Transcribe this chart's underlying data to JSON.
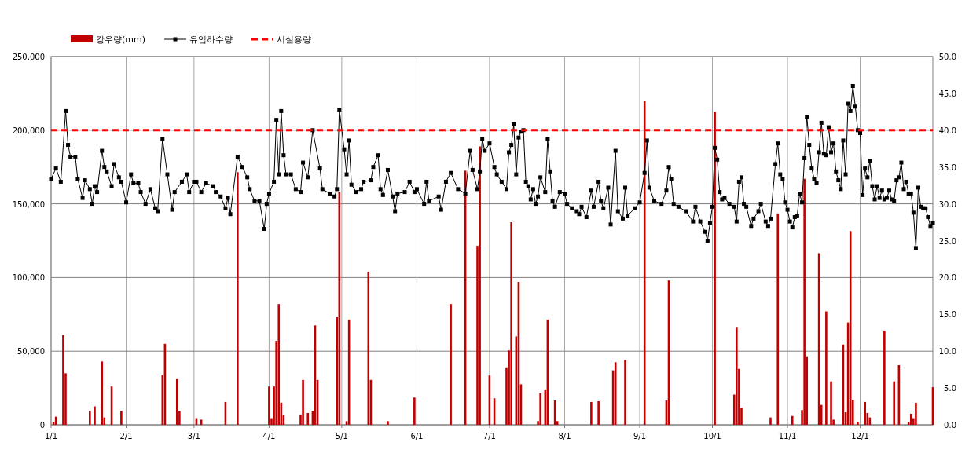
{
  "chart_data": {
    "type": "line",
    "xlim": [
      "--01-01",
      "--12-31"
    ],
    "xticks": [
      {
        "value": "--01-01",
        "label": "1/1"
      },
      {
        "value": "--02-01",
        "label": "2/1"
      },
      {
        "value": "--03-01",
        "label": "3/1"
      },
      {
        "value": "--04-01",
        "label": "4/1"
      },
      {
        "value": "--05-01",
        "label": "5/1"
      },
      {
        "value": "--06-01",
        "label": "6/1"
      },
      {
        "value": "--07-01",
        "label": "7/1"
      },
      {
        "value": "--08-01",
        "label": "8/1"
      },
      {
        "value": "--09-01",
        "label": "9/1"
      },
      {
        "value": "--10-01",
        "label": "10/1"
      },
      {
        "value": "--11-01",
        "label": "11/1"
      },
      {
        "value": "--12-01",
        "label": "12/1"
      }
    ],
    "ylim": [
      0,
      250000
    ],
    "yticks": [
      {
        "value": 0,
        "label": "0"
      },
      {
        "value": 50000,
        "label": "50,000"
      },
      {
        "value": 100000,
        "label": "100,000"
      },
      {
        "value": 150000,
        "label": "150,000"
      },
      {
        "value": 200000,
        "label": "200,000"
      },
      {
        "value": 250000,
        "label": "250,000"
      }
    ],
    "y2lim": [
      0,
      50
    ],
    "y2ticks": [
      {
        "value": 0,
        "label": "0.0"
      },
      {
        "value": 5,
        "label": "5.0"
      },
      {
        "value": 10,
        "label": "10.0"
      },
      {
        "value": 15,
        "label": "15.0"
      },
      {
        "value": 20,
        "label": "20.0"
      },
      {
        "value": 25,
        "label": "25.0"
      },
      {
        "value": 30,
        "label": "30.0"
      },
      {
        "value": 35,
        "label": "35.0"
      },
      {
        "value": 40,
        "label": "40.0"
      },
      {
        "value": 45,
        "label": "45.0"
      },
      {
        "value": 50,
        "label": "50.0"
      }
    ],
    "grid": true,
    "legend": "top left",
    "series": [
      {
        "name": "강우량(mm)",
        "type": "bar",
        "axis": "y2",
        "color": "#c00000",
        "x": [
          "--01-02",
          "--01-03",
          "--01-06",
          "--01-07",
          "--01-17",
          "--01-19",
          "--01-22",
          "--01-23",
          "--01-26",
          "--01-30",
          "--02-16",
          "--02-17",
          "--02-22",
          "--02-23",
          "--03-02",
          "--03-04",
          "--03-14",
          "--03-19",
          "--04-01",
          "--04-02",
          "--04-03",
          "--04-04",
          "--04-05",
          "--04-06",
          "--04-07",
          "--04-14",
          "--04-15",
          "--04-17",
          "--04-19",
          "--04-20",
          "--04-21",
          "--04-29",
          "--04-30",
          "--05-03",
          "--05-04",
          "--05-12",
          "--05-13",
          "--05-20",
          "--05-31",
          "--06-15",
          "--06-21",
          "--06-26",
          "--06-27",
          "--07-01",
          "--07-03",
          "--07-08",
          "--07-09",
          "--07-10",
          "--07-12",
          "--07-13",
          "--07-14",
          "--07-21",
          "--07-22",
          "--07-24",
          "--07-25",
          "--07-28",
          "--07-29",
          "--08-12",
          "--08-15",
          "--08-21",
          "--08-22",
          "--08-26",
          "--09-03",
          "--09-12",
          "--09-13",
          "--10-02",
          "--10-10",
          "--10-11",
          "--10-12",
          "--10-13",
          "--10-25",
          "--10-28",
          "--11-03",
          "--11-07",
          "--11-08",
          "--11-09",
          "--11-14",
          "--11-15",
          "--11-17",
          "--11-19",
          "--11-20",
          "--11-24",
          "--11-25",
          "--11-26",
          "--11-27",
          "--11-28",
          "--11-30",
          "--12-03",
          "--12-04",
          "--12-05",
          "--12-11",
          "--12-15",
          "--12-17",
          "--12-21",
          "--12-22",
          "--12-23",
          "--12-24",
          "--12-31"
        ],
        "values": [
          0.4,
          1.1,
          12.2,
          7.0,
          1.9,
          2.5,
          8.6,
          1.0,
          5.2,
          1.9,
          6.8,
          11.0,
          6.2,
          1.9,
          0.9,
          0.7,
          3.1,
          34.3,
          5.2,
          0.9,
          5.2,
          11.4,
          16.4,
          3.0,
          1.3,
          1.4,
          6.1,
          1.6,
          1.9,
          13.5,
          6.1,
          14.6,
          31.6,
          0.5,
          14.3,
          20.8,
          6.1,
          0.5,
          3.7,
          16.4,
          34.5,
          24.3,
          37.8,
          6.7,
          3.6,
          7.7,
          10.1,
          27.5,
          12.0,
          19.4,
          5.5,
          0.5,
          4.3,
          4.7,
          14.3,
          3.3,
          0.5,
          3.1,
          3.2,
          7.4,
          8.5,
          8.8,
          44.0,
          3.3,
          19.6,
          42.5,
          4.1,
          13.2,
          7.6,
          2.3,
          1.0,
          28.7,
          1.2,
          2.0,
          33.4,
          9.2,
          23.3,
          2.7,
          15.4,
          5.9,
          0.7,
          10.9,
          1.7,
          13.9,
          26.3,
          3.4,
          0.4,
          3.1,
          1.6,
          1.0,
          12.8,
          5.9,
          8.1,
          0.4,
          1.5,
          0.9,
          3.0,
          5.1
        ]
      },
      {
        "name": "유입하수량",
        "marker": "square",
        "color": "#000000",
        "x": [
          "--01-01",
          "--01-03",
          "--01-05",
          "--01-07",
          "--01-08",
          "--01-09",
          "--01-11",
          "--01-12",
          "--01-14",
          "--01-15",
          "--01-17",
          "--01-18",
          "--01-19",
          "--01-20",
          "--01-22",
          "--01-23",
          "--01-24",
          "--01-26",
          "--01-27",
          "--01-29",
          "--01-30",
          "--02-01",
          "--02-03",
          "--02-04",
          "--02-06",
          "--02-07",
          "--02-09",
          "--02-11",
          "--02-13",
          "--02-14",
          "--02-16",
          "--02-18",
          "--02-20",
          "--02-21",
          "--02-24",
          "--02-26",
          "--02-27",
          "--03-01",
          "--03-02",
          "--03-04",
          "--03-06",
          "--03-09",
          "--03-10",
          "--03-12",
          "--03-14",
          "--03-15",
          "--03-16",
          "--03-19",
          "--03-21",
          "--03-23",
          "--03-24",
          "--03-26",
          "--03-28",
          "--03-30",
          "--03-31",
          "--04-01",
          "--04-03",
          "--04-04",
          "--04-05",
          "--04-06",
          "--04-07",
          "--04-08",
          "--04-10",
          "--04-12",
          "--04-14",
          "--04-15",
          "--04-17",
          "--04-19",
          "--04-22",
          "--04-23",
          "--04-26",
          "--04-28",
          "--04-29",
          "--04-30",
          "--05-02",
          "--05-03",
          "--05-04",
          "--05-05",
          "--05-07",
          "--05-09",
          "--05-10",
          "--05-13",
          "--05-14",
          "--05-16",
          "--05-17",
          "--05-18",
          "--05-20",
          "--05-22",
          "--05-23",
          "--05-24",
          "--05-27",
          "--05-29",
          "--05-31",
          "--06-01",
          "--06-04",
          "--06-05",
          "--06-06",
          "--06-10",
          "--06-11",
          "--06-13",
          "--06-15",
          "--06-18",
          "--06-21",
          "--06-23",
          "--06-24",
          "--06-26",
          "--06-27",
          "--06-28",
          "--06-29",
          "--07-01",
          "--07-03",
          "--07-04",
          "--07-06",
          "--07-08",
          "--07-09",
          "--07-10",
          "--07-11",
          "--07-12",
          "--07-13",
          "--07-14",
          "--07-15",
          "--07-16",
          "--07-17",
          "--07-18",
          "--07-19",
          "--07-20",
          "--07-21",
          "--07-22",
          "--07-24",
          "--07-25",
          "--07-26",
          "--07-27",
          "--07-28",
          "--07-30",
          "--08-01",
          "--08-02",
          "--08-04",
          "--08-06",
          "--08-07",
          "--08-08",
          "--08-10",
          "--08-12",
          "--08-13",
          "--08-15",
          "--08-16",
          "--08-17",
          "--08-19",
          "--08-20",
          "--08-22",
          "--08-23",
          "--08-25",
          "--08-26",
          "--08-27",
          "--08-30",
          "--09-01",
          "--09-03",
          "--09-04",
          "--09-05",
          "--09-07",
          "--09-10",
          "--09-12",
          "--09-13",
          "--09-14",
          "--09-15",
          "--09-17",
          "--09-20",
          "--09-23",
          "--09-24",
          "--09-26",
          "--09-28",
          "--09-29",
          "--09-30",
          "--10-01",
          "--10-02",
          "--10-03",
          "--10-04",
          "--10-05",
          "--10-06",
          "--10-08",
          "--10-10",
          "--10-11",
          "--10-12",
          "--10-13",
          "--10-14",
          "--10-15",
          "--10-17",
          "--10-18",
          "--10-20",
          "--10-21",
          "--10-23",
          "--10-24",
          "--10-25",
          "--10-27",
          "--10-28",
          "--10-29",
          "--10-30",
          "--10-31",
          "--11-01",
          "--11-02",
          "--11-03",
          "--11-04",
          "--11-05",
          "--11-06",
          "--11-07",
          "--11-08",
          "--11-09",
          "--11-10",
          "--11-11",
          "--11-12",
          "--11-13",
          "--11-14",
          "--11-15",
          "--11-16",
          "--11-17",
          "--11-18",
          "--11-19",
          "--11-20",
          "--11-21",
          "--11-22",
          "--11-23",
          "--11-24",
          "--11-25",
          "--11-26",
          "--11-27",
          "--11-28",
          "--11-29",
          "--11-30",
          "--12-01",
          "--12-02",
          "--12-03",
          "--12-04",
          "--12-05",
          "--12-06",
          "--12-07",
          "--12-08",
          "--12-09",
          "--12-10",
          "--12-11",
          "--12-12",
          "--12-13",
          "--12-14",
          "--12-15",
          "--12-16",
          "--12-17",
          "--12-18",
          "--12-19",
          "--12-20",
          "--12-21",
          "--12-22",
          "--12-23",
          "--12-24",
          "--12-25",
          "--12-26",
          "--12-27",
          "--12-28",
          "--12-29",
          "--12-30",
          "--12-31"
        ],
        "values": [
          167000,
          174000,
          165000,
          213000,
          190000,
          182000,
          182000,
          167000,
          154000,
          166000,
          160000,
          150000,
          162000,
          158000,
          186000,
          175000,
          172000,
          162000,
          177000,
          168000,
          165000,
          151000,
          170000,
          164000,
          164000,
          158000,
          150000,
          160000,
          147000,
          145000,
          194000,
          170000,
          146000,
          158000,
          165000,
          170000,
          158000,
          165000,
          165000,
          158000,
          164000,
          162000,
          158000,
          155000,
          147000,
          154000,
          143000,
          182000,
          175000,
          168000,
          160000,
          152000,
          152000,
          133000,
          150000,
          157000,
          165000,
          207000,
          170000,
          213000,
          183000,
          170000,
          170000,
          160000,
          158000,
          178000,
          168000,
          200000,
          174000,
          160000,
          157000,
          155000,
          160000,
          214000,
          187000,
          170000,
          193000,
          163000,
          158000,
          160000,
          165000,
          166000,
          175000,
          183000,
          160000,
          156000,
          173000,
          155000,
          145000,
          157000,
          158000,
          165000,
          158000,
          160000,
          150000,
          165000,
          152000,
          155000,
          146000,
          165000,
          171000,
          160000,
          157000,
          186000,
          173000,
          160000,
          172000,
          194000,
          186000,
          191000,
          175000,
          170000,
          165000,
          160000,
          185000,
          190000,
          204000,
          170000,
          195000,
          199000,
          200000,
          165000,
          162000,
          153000,
          160000,
          150000,
          155000,
          168000,
          158000,
          194000,
          172000,
          152000,
          148000,
          158000,
          157000,
          150000,
          147000,
          145000,
          143000,
          148000,
          141000,
          159000,
          148000,
          165000,
          152000,
          147000,
          161000,
          136000,
          186000,
          145000,
          140000,
          161000,
          142000,
          147000,
          151000,
          171000,
          193000,
          161000,
          152000,
          150000,
          159000,
          175000,
          167000,
          150000,
          148000,
          145000,
          138000,
          148000,
          138000,
          131000,
          125000,
          137000,
          148000,
          188000,
          180000,
          158000,
          153000,
          154000,
          150000,
          148000,
          138000,
          165000,
          168000,
          150000,
          148000,
          135000,
          140000,
          145000,
          150000,
          138000,
          135000,
          140000,
          177000,
          191000,
          170000,
          167000,
          151000,
          146000,
          138000,
          134000,
          141000,
          142000,
          157000,
          151000,
          181000,
          209000,
          190000,
          174000,
          167000,
          164000,
          185000,
          205000,
          184000,
          183000,
          202000,
          185000,
          191000,
          172000,
          166000,
          160000,
          193000,
          170000,
          218000,
          213000,
          230000,
          216000,
          200000,
          198000,
          156000,
          174000,
          168000,
          179000,
          162000,
          153000,
          162000,
          154000,
          159000,
          153000,
          154000,
          159000,
          153000,
          152000,
          166000,
          168000,
          178000,
          160000,
          165000,
          157000,
          157000,
          144000,
          120000,
          161000,
          148000,
          147000,
          147000,
          141000,
          135000,
          137000
        ]
      }
    ],
    "ref_lines": [
      {
        "axis": "y",
        "value": 200000,
        "label": "시설용량",
        "color": "#ff0000",
        "line_style": "dashed"
      }
    ]
  }
}
